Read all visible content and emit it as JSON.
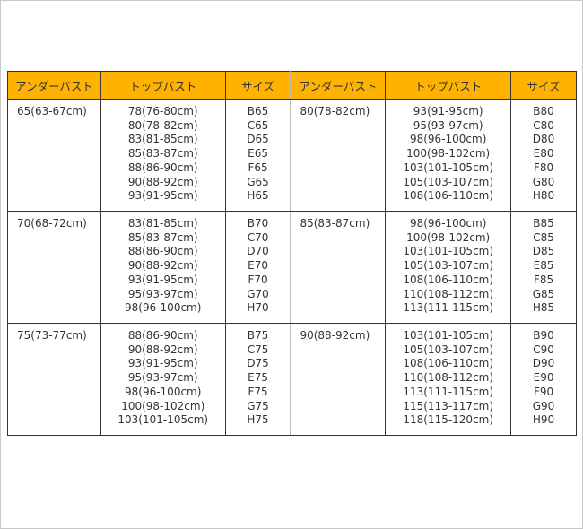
{
  "header": [
    "アンダーバスト",
    "トップバスト",
    "サイズ",
    "アンダーバスト",
    "トップバスト",
    "サイズ"
  ],
  "header_color": "#ffb300",
  "rows": [
    [
      {
        "under": "65(63-67cm)",
        "top": [
          "78(76-80cm)",
          "80(78-82cm)",
          "83(81-85cm)",
          "85(83-87cm)",
          "88(86-90cm)",
          "90(88-92cm)",
          "93(91-95cm)"
        ],
        "size": [
          "B65",
          "C65",
          "D65",
          "E65",
          "F65",
          "G65",
          "H65"
        ]
      },
      {
        "under": "80(78-82cm)",
        "top": [
          "93(91-95cm)",
          "95(93-97cm)",
          "98(96-100cm)",
          "100(98-102cm)",
          "103(101-105cm)",
          "105(103-107cm)",
          "108(106-110cm)"
        ],
        "size": [
          "B80",
          "C80",
          "D80",
          "E80",
          "F80",
          "G80",
          "H80"
        ]
      }
    ],
    [
      {
        "under": "70(68-72cm)",
        "top": [
          "83(81-85cm)",
          "85(83-87cm)",
          "88(86-90cm)",
          "90(88-92cm)",
          "93(91-95cm)",
          "95(93-97cm)",
          "98(96-100cm)"
        ],
        "size": [
          "B70",
          "C70",
          "D70",
          "E70",
          "F70",
          "G70",
          "H70"
        ]
      },
      {
        "under": "85(83-87cm)",
        "top": [
          "98(96-100cm)",
          "100(98-102cm)",
          "103(101-105cm)",
          "105(103-107cm)",
          "108(106-110cm)",
          "110(108-112cm)",
          "113(111-115cm)"
        ],
        "size": [
          "B85",
          "C85",
          "D85",
          "E85",
          "F85",
          "G85",
          "H85"
        ]
      }
    ],
    [
      {
        "under": "75(73-77cm)",
        "top": [
          "88(86-90cm)",
          "90(88-92cm)",
          "93(91-95cm)",
          "95(93-97cm)",
          "98(96-100cm)",
          "100(98-102cm)",
          "103(101-105cm)"
        ],
        "size": [
          "B75",
          "C75",
          "D75",
          "E75",
          "F75",
          "G75",
          "H75"
        ]
      },
      {
        "under": "90(88-92cm)",
        "top": [
          "103(101-105cm)",
          "105(103-107cm)",
          "108(106-110cm)",
          "110(108-112cm)",
          "113(111-115cm)",
          "115(113-117cm)",
          "118(115-120cm)"
        ],
        "size": [
          "B90",
          "C90",
          "D90",
          "E90",
          "F90",
          "G90",
          "H90"
        ]
      }
    ]
  ]
}
